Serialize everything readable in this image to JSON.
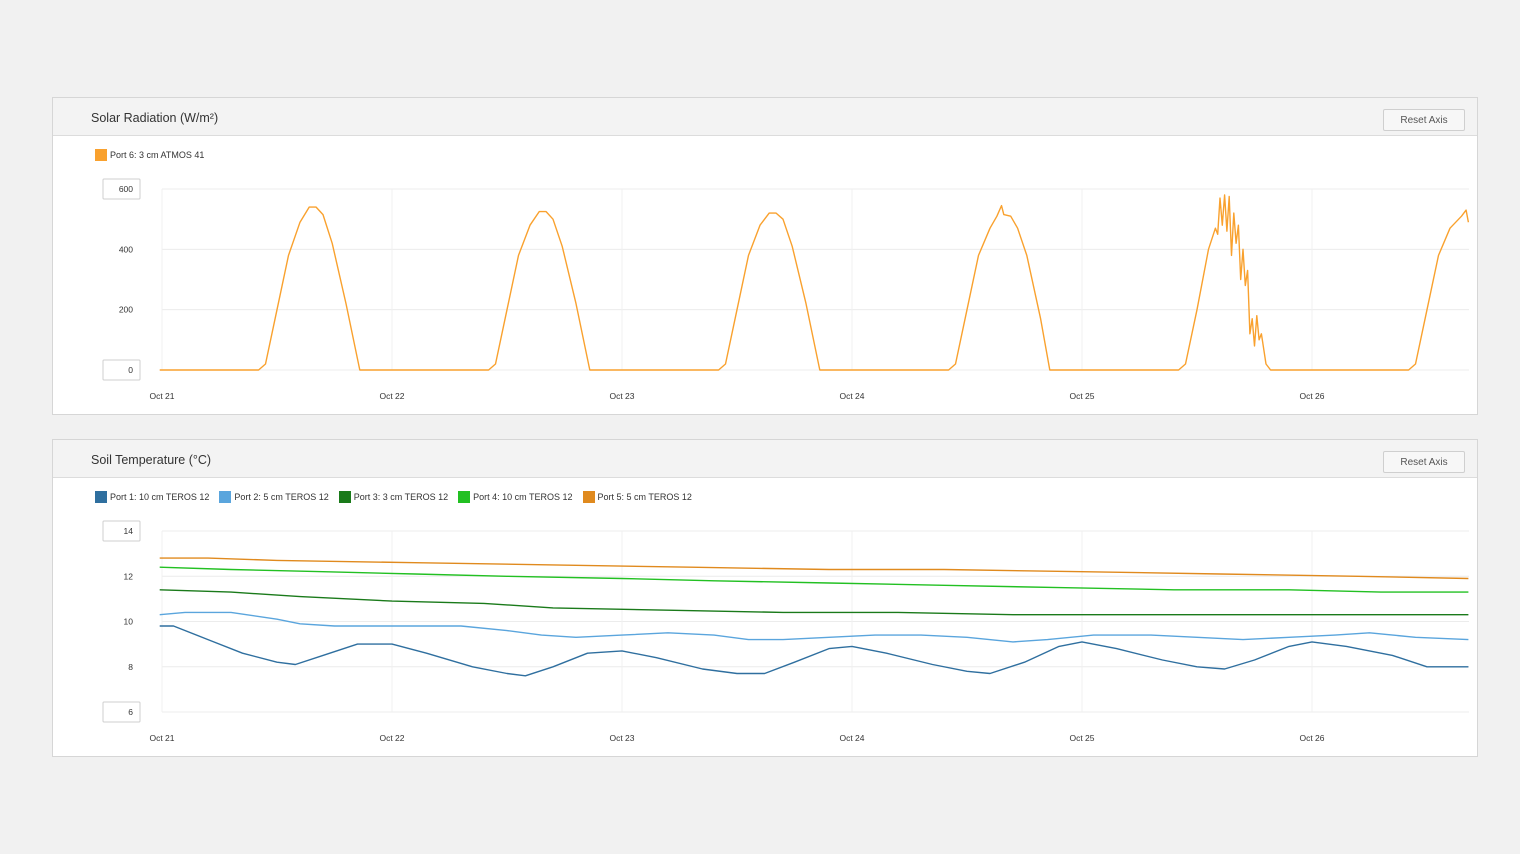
{
  "panels": [
    {
      "title": "Solar Radiation (W/m²)",
      "reset_label": "Reset Axis"
    },
    {
      "title": "Soil Temperature (°C)",
      "reset_label": "Reset Axis"
    }
  ],
  "chart_data": [
    {
      "type": "line",
      "title": "Solar Radiation (W/m²)",
      "xlabel": "",
      "ylabel": "",
      "x_ticks": [
        "Oct 21",
        "Oct 22",
        "Oct 23",
        "Oct 24",
        "Oct 25",
        "Oct 26"
      ],
      "x_range": [
        20.99,
        26.68
      ],
      "ylim": [
        0,
        600
      ],
      "y_ticks": [
        0,
        200,
        400,
        600
      ],
      "grid": true,
      "legend": "top-left",
      "series": [
        {
          "name": "Port 6: 3 cm ATMOS 41",
          "color": "#f9a12e",
          "points": [
            [
              20.99,
              0
            ],
            [
              21.42,
              0
            ],
            [
              21.45,
              20
            ],
            [
              21.5,
              200
            ],
            [
              21.55,
              380
            ],
            [
              21.6,
              490
            ],
            [
              21.64,
              540
            ],
            [
              21.67,
              540
            ],
            [
              21.7,
              515
            ],
            [
              21.74,
              420
            ],
            [
              21.8,
              220
            ],
            [
              21.86,
              0
            ],
            [
              22.42,
              0
            ],
            [
              22.45,
              20
            ],
            [
              22.5,
              200
            ],
            [
              22.55,
              380
            ],
            [
              22.6,
              480
            ],
            [
              22.64,
              525
            ],
            [
              22.67,
              525
            ],
            [
              22.7,
              500
            ],
            [
              22.74,
              410
            ],
            [
              22.8,
              220
            ],
            [
              22.86,
              0
            ],
            [
              23.42,
              0
            ],
            [
              23.45,
              20
            ],
            [
              23.5,
              200
            ],
            [
              23.55,
              380
            ],
            [
              23.6,
              480
            ],
            [
              23.64,
              520
            ],
            [
              23.67,
              520
            ],
            [
              23.7,
              500
            ],
            [
              23.74,
              410
            ],
            [
              23.8,
              220
            ],
            [
              23.86,
              0
            ],
            [
              24.42,
              0
            ],
            [
              24.45,
              20
            ],
            [
              24.5,
              200
            ],
            [
              24.55,
              380
            ],
            [
              24.6,
              470
            ],
            [
              24.63,
              510
            ],
            [
              24.65,
              545
            ],
            [
              24.66,
              515
            ],
            [
              24.69,
              510
            ],
            [
              24.72,
              470
            ],
            [
              24.76,
              380
            ],
            [
              24.82,
              170
            ],
            [
              24.86,
              0
            ],
            [
              25.42,
              0
            ],
            [
              25.45,
              20
            ],
            [
              25.5,
              200
            ],
            [
              25.55,
              400
            ],
            [
              25.58,
              470
            ],
            [
              25.59,
              450
            ],
            [
              25.6,
              570
            ],
            [
              25.61,
              480
            ],
            [
              25.62,
              580
            ],
            [
              25.63,
              460
            ],
            [
              25.64,
              575
            ],
            [
              25.65,
              380
            ],
            [
              25.66,
              520
            ],
            [
              25.67,
              420
            ],
            [
              25.68,
              480
            ],
            [
              25.69,
              300
            ],
            [
              25.7,
              400
            ],
            [
              25.71,
              280
            ],
            [
              25.72,
              330
            ],
            [
              25.73,
              120
            ],
            [
              25.74,
              170
            ],
            [
              25.75,
              80
            ],
            [
              25.76,
              180
            ],
            [
              25.77,
              100
            ],
            [
              25.78,
              120
            ],
            [
              25.8,
              20
            ],
            [
              25.82,
              0
            ],
            [
              26.42,
              0
            ],
            [
              26.45,
              20
            ],
            [
              26.5,
              200
            ],
            [
              26.55,
              380
            ],
            [
              26.6,
              470
            ],
            [
              26.65,
              510
            ],
            [
              26.67,
              530
            ],
            [
              26.68,
              490
            ]
          ]
        }
      ]
    },
    {
      "type": "line",
      "title": "Soil Temperature (°C)",
      "xlabel": "",
      "ylabel": "",
      "x_ticks": [
        "Oct 21",
        "Oct 22",
        "Oct 23",
        "Oct 24",
        "Oct 25",
        "Oct 26"
      ],
      "x_range": [
        20.99,
        26.68
      ],
      "ylim": [
        6,
        14
      ],
      "y_ticks": [
        6,
        8,
        10,
        12,
        14
      ],
      "grid": true,
      "legend": "top-left",
      "series": [
        {
          "name": "Port 1: 10 cm TEROS 12",
          "color": "#2f6f9f",
          "points": [
            [
              20.99,
              9.8
            ],
            [
              21.05,
              9.8
            ],
            [
              21.2,
              9.2
            ],
            [
              21.35,
              8.6
            ],
            [
              21.5,
              8.2
            ],
            [
              21.58,
              8.1
            ],
            [
              21.7,
              8.5
            ],
            [
              21.85,
              9.0
            ],
            [
              22.0,
              9.0
            ],
            [
              22.15,
              8.6
            ],
            [
              22.35,
              8.0
            ],
            [
              22.5,
              7.7
            ],
            [
              22.58,
              7.6
            ],
            [
              22.7,
              8.0
            ],
            [
              22.85,
              8.6
            ],
            [
              23.0,
              8.7
            ],
            [
              23.15,
              8.4
            ],
            [
              23.35,
              7.9
            ],
            [
              23.5,
              7.7
            ],
            [
              23.62,
              7.7
            ],
            [
              23.75,
              8.2
            ],
            [
              23.9,
              8.8
            ],
            [
              24.0,
              8.9
            ],
            [
              24.15,
              8.6
            ],
            [
              24.35,
              8.1
            ],
            [
              24.5,
              7.8
            ],
            [
              24.6,
              7.7
            ],
            [
              24.75,
              8.2
            ],
            [
              24.9,
              8.9
            ],
            [
              25.0,
              9.1
            ],
            [
              25.15,
              8.8
            ],
            [
              25.35,
              8.3
            ],
            [
              25.5,
              8.0
            ],
            [
              25.62,
              7.9
            ],
            [
              25.75,
              8.3
            ],
            [
              25.9,
              8.9
            ],
            [
              26.0,
              9.1
            ],
            [
              26.15,
              8.9
            ],
            [
              26.35,
              8.5
            ],
            [
              26.5,
              8.0
            ],
            [
              26.68,
              8.0
            ]
          ]
        },
        {
          "name": "Port 2: 5 cm TEROS 12",
          "color": "#5aa5dd",
          "points": [
            [
              20.99,
              10.3
            ],
            [
              21.1,
              10.4
            ],
            [
              21.3,
              10.4
            ],
            [
              21.5,
              10.1
            ],
            [
              21.6,
              9.9
            ],
            [
              21.75,
              9.8
            ],
            [
              22.0,
              9.8
            ],
            [
              22.3,
              9.8
            ],
            [
              22.5,
              9.6
            ],
            [
              22.65,
              9.4
            ],
            [
              22.8,
              9.3
            ],
            [
              23.0,
              9.4
            ],
            [
              23.2,
              9.5
            ],
            [
              23.4,
              9.4
            ],
            [
              23.55,
              9.2
            ],
            [
              23.7,
              9.2
            ],
            [
              23.9,
              9.3
            ],
            [
              24.1,
              9.4
            ],
            [
              24.3,
              9.4
            ],
            [
              24.5,
              9.3
            ],
            [
              24.7,
              9.1
            ],
            [
              24.85,
              9.2
            ],
            [
              25.05,
              9.4
            ],
            [
              25.3,
              9.4
            ],
            [
              25.5,
              9.3
            ],
            [
              25.7,
              9.2
            ],
            [
              25.9,
              9.3
            ],
            [
              26.1,
              9.4
            ],
            [
              26.25,
              9.5
            ],
            [
              26.45,
              9.3
            ],
            [
              26.68,
              9.2
            ]
          ]
        },
        {
          "name": "Port 3: 3 cm TEROS 12",
          "color": "#1a7a1a",
          "points": [
            [
              20.99,
              11.4
            ],
            [
              21.3,
              11.3
            ],
            [
              21.6,
              11.1
            ],
            [
              22.0,
              10.9
            ],
            [
              22.4,
              10.8
            ],
            [
              22.7,
              10.6
            ],
            [
              23.2,
              10.5
            ],
            [
              23.7,
              10.4
            ],
            [
              24.2,
              10.4
            ],
            [
              24.7,
              10.3
            ],
            [
              25.2,
              10.3
            ],
            [
              25.8,
              10.3
            ],
            [
              26.68,
              10.3
            ]
          ]
        },
        {
          "name": "Port 4: 10 cm TEROS 12",
          "color": "#22c022",
          "points": [
            [
              20.99,
              12.4
            ],
            [
              21.3,
              12.3
            ],
            [
              21.7,
              12.2
            ],
            [
              22.1,
              12.1
            ],
            [
              22.5,
              12.0
            ],
            [
              23.0,
              11.9
            ],
            [
              23.4,
              11.8
            ],
            [
              23.9,
              11.7
            ],
            [
              24.4,
              11.6
            ],
            [
              24.9,
              11.5
            ],
            [
              25.4,
              11.4
            ],
            [
              25.9,
              11.4
            ],
            [
              26.3,
              11.3
            ],
            [
              26.68,
              11.3
            ]
          ]
        },
        {
          "name": "Port 5: 5 cm TEROS 12",
          "color": "#e08a1e",
          "points": [
            [
              20.99,
              12.8
            ],
            [
              21.2,
              12.8
            ],
            [
              21.5,
              12.7
            ],
            [
              22.1,
              12.6
            ],
            [
              22.7,
              12.5
            ],
            [
              23.3,
              12.4
            ],
            [
              23.9,
              12.3
            ],
            [
              24.4,
              12.3
            ],
            [
              25.0,
              12.2
            ],
            [
              25.6,
              12.1
            ],
            [
              26.2,
              12.0
            ],
            [
              26.68,
              11.9
            ]
          ]
        }
      ]
    }
  ]
}
